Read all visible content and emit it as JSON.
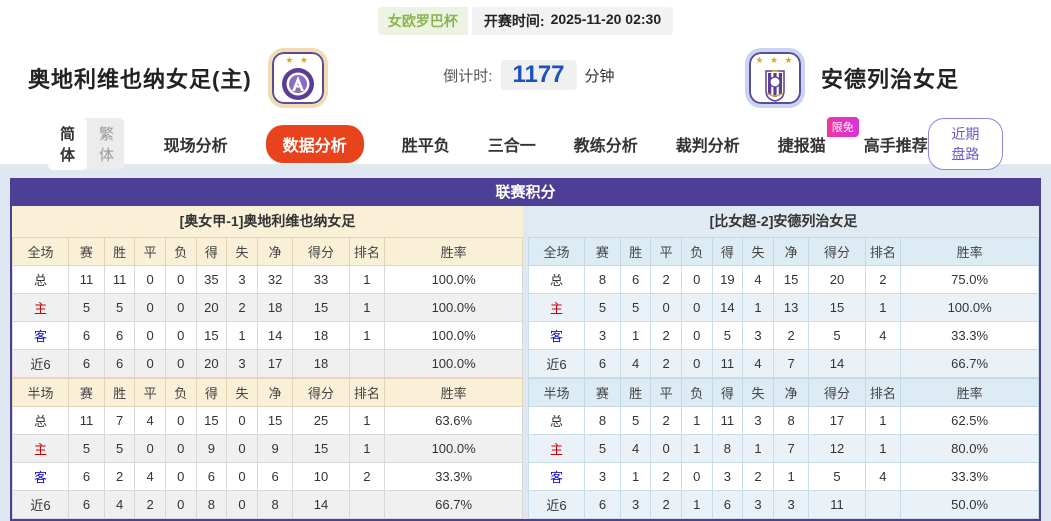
{
  "colors": {
    "accent_purple": "#4e3f96",
    "active_tab_orange": "#e8431d",
    "badge_pink": "#ee2fb2",
    "league_green": "#8ab54d",
    "countdown_blue": "#1b52c0",
    "home_row_red": "#cc0000",
    "away_row_blue": "#1414cc"
  },
  "topbar": {
    "league_badge": "女欧罗巴杯",
    "kickoff_label": "开赛时间:",
    "kickoff_value": "2025-11-20 02:30"
  },
  "banner": {
    "home_name": "奥地利维也纳女足(主)",
    "home_stars": "★ ★",
    "home_logo": "austria-vienna-crest",
    "away_name": "安德列治女足",
    "away_stars": "★ ★ ★",
    "away_logo": "anderlecht-crest",
    "countdown_label": "倒计时:",
    "countdown_value": "1177",
    "countdown_unit": "分钟"
  },
  "nav": {
    "lang_simplified": "简体",
    "lang_traditional": "繁体",
    "tabs": [
      {
        "label": "现场分析",
        "active": false
      },
      {
        "label": "数据分析",
        "active": true
      },
      {
        "label": "胜平负",
        "active": false
      },
      {
        "label": "三合一",
        "active": false
      },
      {
        "label": "教练分析",
        "active": false
      },
      {
        "label": "裁判分析",
        "active": false
      },
      {
        "label": "捷报猫",
        "active": false,
        "badge": "限免"
      },
      {
        "label": "高手推荐",
        "active": false
      }
    ],
    "recent_button": "近期盘路"
  },
  "panel": {
    "title": "联赛积分",
    "left": {
      "team_title": "[奥女甲-1]奥地利维也纳女足",
      "full": {
        "scope": "全场",
        "headers": [
          "赛",
          "胜",
          "平",
          "负",
          "得",
          "失",
          "净",
          "得分",
          "排名",
          "胜率"
        ],
        "rows": [
          {
            "label": "总",
            "type": "total",
            "values": [
              "11",
              "11",
              "0",
              "0",
              "35",
              "3",
              "32",
              "33",
              "1",
              "100.0%"
            ]
          },
          {
            "label": "主",
            "type": "home",
            "values": [
              "5",
              "5",
              "0",
              "0",
              "20",
              "2",
              "18",
              "15",
              "1",
              "100.0%"
            ]
          },
          {
            "label": "客",
            "type": "away",
            "values": [
              "6",
              "6",
              "0",
              "0",
              "15",
              "1",
              "14",
              "18",
              "1",
              "100.0%"
            ]
          },
          {
            "label": "近6",
            "type": "recent6",
            "values": [
              "6",
              "6",
              "0",
              "0",
              "20",
              "3",
              "17",
              "18",
              "",
              "100.0%"
            ]
          }
        ]
      },
      "half": {
        "scope": "半场",
        "headers": [
          "赛",
          "胜",
          "平",
          "负",
          "得",
          "失",
          "净",
          "得分",
          "排名",
          "胜率"
        ],
        "rows": [
          {
            "label": "总",
            "type": "total",
            "values": [
              "11",
              "7",
              "4",
              "0",
              "15",
              "0",
              "15",
              "25",
              "1",
              "63.6%"
            ]
          },
          {
            "label": "主",
            "type": "home",
            "values": [
              "5",
              "5",
              "0",
              "0",
              "9",
              "0",
              "9",
              "15",
              "1",
              "100.0%"
            ]
          },
          {
            "label": "客",
            "type": "away",
            "values": [
              "6",
              "2",
              "4",
              "0",
              "6",
              "0",
              "6",
              "10",
              "2",
              "33.3%"
            ]
          },
          {
            "label": "近6",
            "type": "recent6",
            "values": [
              "6",
              "4",
              "2",
              "0",
              "8",
              "0",
              "8",
              "14",
              "",
              "66.7%"
            ]
          }
        ]
      }
    },
    "right": {
      "team_title": "[比女超-2]安德列治女足",
      "full": {
        "scope": "全场",
        "headers": [
          "赛",
          "胜",
          "平",
          "负",
          "得",
          "失",
          "净",
          "得分",
          "排名",
          "胜率"
        ],
        "rows": [
          {
            "label": "总",
            "type": "total",
            "values": [
              "8",
              "6",
              "2",
              "0",
              "19",
              "4",
              "15",
              "20",
              "2",
              "75.0%"
            ]
          },
          {
            "label": "主",
            "type": "home",
            "values": [
              "5",
              "5",
              "0",
              "0",
              "14",
              "1",
              "13",
              "15",
              "1",
              "100.0%"
            ]
          },
          {
            "label": "客",
            "type": "away",
            "values": [
              "3",
              "1",
              "2",
              "0",
              "5",
              "3",
              "2",
              "5",
              "4",
              "33.3%"
            ]
          },
          {
            "label": "近6",
            "type": "recent6",
            "values": [
              "6",
              "4",
              "2",
              "0",
              "11",
              "4",
              "7",
              "14",
              "",
              "66.7%"
            ]
          }
        ]
      },
      "half": {
        "scope": "半场",
        "headers": [
          "赛",
          "胜",
          "平",
          "负",
          "得",
          "失",
          "净",
          "得分",
          "排名",
          "胜率"
        ],
        "rows": [
          {
            "label": "总",
            "type": "total",
            "values": [
              "8",
              "5",
              "2",
              "1",
              "11",
              "3",
              "8",
              "17",
              "1",
              "62.5%"
            ]
          },
          {
            "label": "主",
            "type": "home",
            "values": [
              "5",
              "4",
              "0",
              "1",
              "8",
              "1",
              "7",
              "12",
              "1",
              "80.0%"
            ]
          },
          {
            "label": "客",
            "type": "away",
            "values": [
              "3",
              "1",
              "2",
              "0",
              "3",
              "2",
              "1",
              "5",
              "4",
              "33.3%"
            ]
          },
          {
            "label": "近6",
            "type": "recent6",
            "values": [
              "6",
              "3",
              "2",
              "1",
              "6",
              "3",
              "3",
              "11",
              "",
              "50.0%"
            ]
          }
        ]
      }
    }
  }
}
